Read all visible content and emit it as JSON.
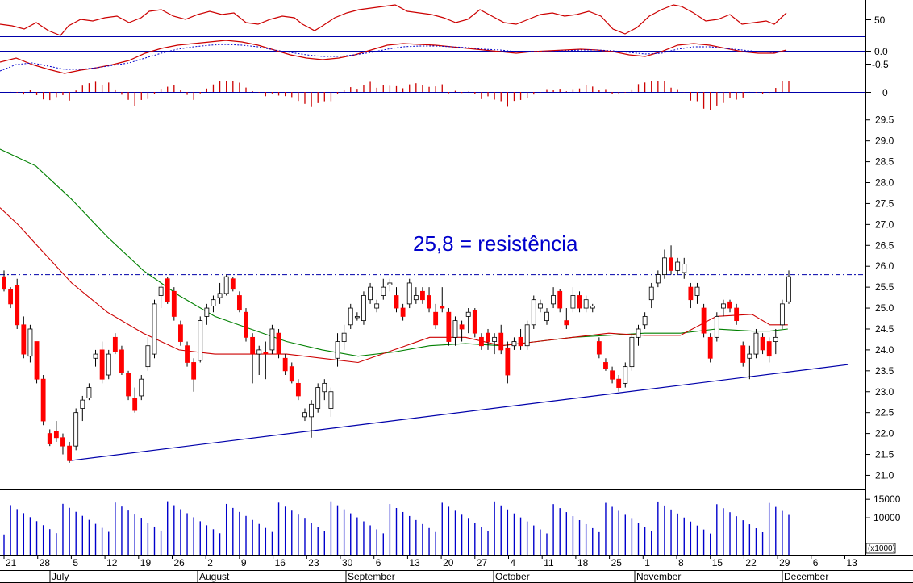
{
  "chart_data": {
    "type": "candlestick",
    "annotation": "25,8 = resistência",
    "resistance_level": 25.8,
    "colors": {
      "up_candle": "#ffffff",
      "down_candle": "#ff0000",
      "candle_outline": "#000000",
      "ma_fast": "#cc0000",
      "ma_slow": "#008000",
      "trendline": "#0000aa",
      "resistance_line": "#0000aa",
      "volume": "#0000cc",
      "indicator_line": "#cc0000",
      "signal_line": "#0000cc",
      "histogram": "#cc0000"
    },
    "price_axis": {
      "ylim": [
        20.7,
        29.9
      ],
      "ticks": [
        "29.5",
        "29.0",
        "28.5",
        "28.0",
        "27.5",
        "27.0",
        "26.5",
        "26.0",
        "25.5",
        "25.0",
        "24.5",
        "24.0",
        "23.5",
        "23.0",
        "22.5",
        "22.0",
        "21.5",
        "21.0"
      ]
    },
    "volume_axis": {
      "ylim": [
        0,
        17000
      ],
      "ticks": [
        "15000",
        "10000"
      ],
      "unit_label": "x1000"
    },
    "oscillator_axis": {
      "ticks": [
        "50"
      ]
    },
    "macd_axis": {
      "ticks": [
        "0.0",
        "-0.5"
      ]
    },
    "histogram_axis": {
      "ticks": [
        "0"
      ]
    },
    "x_day_labels": [
      "21",
      "28",
      "5",
      "12",
      "19",
      "26",
      "2",
      "9",
      "16",
      "23",
      "30",
      "6",
      "13",
      "20",
      "27",
      "4",
      "11",
      "18",
      "25",
      "1",
      "8",
      "15",
      "22",
      "29",
      "6",
      "13"
    ],
    "x_month_labels": [
      "July",
      "August",
      "September",
      "October",
      "November",
      "December"
    ],
    "trendline": {
      "start": 21.35,
      "end": 23.65
    },
    "ohlc": [
      [
        25.75,
        25.9,
        25.4,
        25.45
      ],
      [
        25.45,
        25.5,
        25.0,
        25.1
      ],
      [
        25.55,
        25.7,
        24.5,
        24.6
      ],
      [
        24.6,
        24.8,
        23.8,
        23.9
      ],
      [
        23.85,
        24.6,
        23.7,
        24.5
      ],
      [
        24.2,
        24.2,
        23.2,
        23.3
      ],
      [
        23.3,
        23.4,
        22.2,
        22.3
      ],
      [
        22.0,
        22.1,
        21.7,
        21.75
      ],
      [
        22.05,
        22.3,
        21.8,
        21.9
      ],
      [
        21.9,
        22.0,
        21.5,
        21.7
      ],
      [
        21.7,
        21.8,
        21.3,
        21.35
      ],
      [
        21.7,
        22.6,
        21.6,
        22.5
      ],
      [
        22.6,
        22.9,
        22.3,
        22.8
      ],
      [
        22.85,
        23.2,
        22.8,
        23.1
      ],
      [
        23.8,
        24.0,
        23.6,
        23.9
      ],
      [
        24.0,
        24.2,
        23.2,
        23.3
      ],
      [
        23.4,
        24.0,
        23.3,
        23.9
      ],
      [
        24.3,
        24.4,
        23.9,
        23.95
      ],
      [
        24.0,
        24.1,
        23.4,
        23.45
      ],
      [
        23.45,
        23.5,
        22.8,
        22.9
      ],
      [
        22.85,
        23.1,
        22.5,
        22.55
      ],
      [
        22.9,
        23.4,
        22.8,
        23.3
      ],
      [
        23.6,
        24.3,
        23.5,
        24.1
      ],
      [
        23.9,
        25.2,
        23.8,
        25.1
      ],
      [
        25.3,
        25.6,
        25.0,
        25.5
      ],
      [
        25.7,
        25.75,
        25.1,
        25.15
      ],
      [
        25.4,
        25.5,
        24.7,
        24.8
      ],
      [
        24.6,
        24.7,
        24.1,
        24.2
      ],
      [
        24.1,
        24.2,
        23.6,
        23.7
      ],
      [
        23.7,
        23.8,
        23.0,
        23.3
      ],
      [
        23.75,
        24.8,
        23.7,
        24.7
      ],
      [
        24.8,
        25.1,
        24.6,
        25.0
      ],
      [
        25.05,
        25.3,
        24.9,
        25.2
      ],
      [
        25.25,
        25.6,
        25.1,
        25.35
      ],
      [
        25.35,
        25.8,
        25.3,
        25.75
      ],
      [
        25.7,
        25.75,
        25.4,
        25.45
      ],
      [
        25.3,
        25.4,
        24.9,
        24.95
      ],
      [
        24.9,
        25.0,
        24.2,
        24.3
      ],
      [
        24.3,
        24.4,
        23.2,
        23.9
      ],
      [
        23.9,
        24.1,
        23.4,
        24.0
      ],
      [
        23.95,
        24.2,
        23.3,
        23.9
      ],
      [
        24.0,
        24.6,
        23.9,
        24.5
      ],
      [
        24.4,
        24.5,
        23.8,
        23.9
      ],
      [
        23.8,
        23.9,
        23.4,
        23.5
      ],
      [
        23.6,
        23.7,
        23.2,
        23.25
      ],
      [
        23.2,
        23.3,
        22.8,
        22.9
      ],
      [
        22.4,
        22.6,
        22.3,
        22.5
      ],
      [
        22.4,
        22.8,
        21.9,
        22.7
      ],
      [
        22.6,
        23.2,
        22.5,
        23.1
      ],
      [
        23.0,
        23.3,
        22.8,
        23.2
      ],
      [
        22.6,
        23.1,
        22.4,
        23.0
      ],
      [
        23.8,
        24.4,
        23.6,
        24.2
      ],
      [
        24.2,
        24.6,
        24.0,
        24.4
      ],
      [
        24.6,
        25.1,
        24.5,
        25.0
      ],
      [
        24.8,
        24.9,
        24.7,
        24.8
      ],
      [
        24.7,
        25.4,
        24.6,
        25.3
      ],
      [
        25.2,
        25.6,
        25.1,
        25.5
      ],
      [
        25.0,
        25.2,
        24.9,
        25.1
      ],
      [
        25.3,
        25.7,
        25.2,
        25.5
      ],
      [
        25.55,
        25.7,
        25.4,
        25.6
      ],
      [
        25.3,
        25.5,
        24.9,
        25.0
      ],
      [
        25.0,
        25.1,
        24.7,
        24.8
      ],
      [
        25.1,
        25.7,
        25.0,
        25.6
      ],
      [
        25.2,
        25.5,
        25.1,
        25.3
      ],
      [
        25.4,
        25.5,
        25.1,
        25.2
      ],
      [
        25.3,
        25.5,
        24.9,
        25.0
      ],
      [
        24.9,
        25.1,
        24.5,
        24.6
      ],
      [
        25.05,
        25.5,
        24.9,
        25.0
      ],
      [
        24.9,
        25.0,
        24.1,
        24.2
      ],
      [
        24.3,
        24.8,
        24.1,
        24.7
      ],
      [
        24.6,
        24.7,
        24.2,
        24.5
      ],
      [
        24.8,
        25.0,
        24.4,
        24.9
      ],
      [
        24.95,
        25.0,
        24.3,
        24.4
      ],
      [
        24.3,
        24.4,
        24.0,
        24.1
      ],
      [
        24.4,
        24.5,
        24.0,
        24.2
      ],
      [
        24.2,
        24.4,
        23.9,
        24.3
      ],
      [
        24.4,
        24.6,
        23.9,
        24.0
      ],
      [
        24.05,
        24.2,
        23.2,
        23.4
      ],
      [
        24.1,
        24.3,
        24.0,
        24.2
      ],
      [
        24.3,
        24.5,
        24.0,
        24.1
      ],
      [
        24.1,
        24.7,
        24.0,
        24.6
      ],
      [
        24.6,
        25.3,
        24.5,
        25.2
      ],
      [
        25.0,
        25.2,
        24.9,
        25.1
      ],
      [
        24.7,
        25.0,
        24.6,
        24.9
      ],
      [
        25.1,
        25.5,
        25.0,
        25.3
      ],
      [
        25.4,
        25.45,
        24.9,
        25.0
      ],
      [
        24.7,
        25.0,
        24.5,
        24.6
      ],
      [
        25.0,
        25.5,
        24.9,
        25.3
      ],
      [
        25.3,
        25.4,
        24.9,
        25.0
      ],
      [
        25.0,
        25.3,
        24.9,
        25.2
      ],
      [
        25.0,
        25.1,
        24.9,
        25.05
      ],
      [
        24.2,
        24.3,
        23.8,
        23.9
      ],
      [
        23.7,
        23.8,
        23.5,
        23.55
      ],
      [
        23.5,
        23.6,
        23.2,
        23.3
      ],
      [
        23.3,
        23.4,
        23.0,
        23.1
      ],
      [
        23.2,
        23.7,
        23.1,
        23.6
      ],
      [
        23.6,
        24.4,
        23.5,
        24.3
      ],
      [
        24.3,
        24.6,
        24.1,
        24.5
      ],
      [
        24.6,
        24.9,
        24.5,
        24.8
      ],
      [
        25.2,
        25.6,
        25.0,
        25.5
      ],
      [
        25.6,
        25.9,
        25.5,
        25.8
      ],
      [
        25.8,
        26.4,
        25.7,
        26.2
      ],
      [
        26.2,
        26.5,
        25.8,
        25.9
      ],
      [
        25.9,
        26.2,
        25.8,
        26.1
      ],
      [
        25.85,
        26.2,
        25.7,
        26.05
      ],
      [
        25.5,
        25.6,
        25.0,
        25.2
      ],
      [
        25.3,
        25.6,
        25.1,
        25.5
      ],
      [
        25.0,
        25.1,
        24.3,
        24.4
      ],
      [
        24.3,
        24.4,
        23.7,
        23.8
      ],
      [
        24.3,
        24.9,
        24.2,
        24.8
      ],
      [
        25.0,
        25.2,
        24.8,
        25.1
      ],
      [
        25.15,
        25.2,
        24.9,
        25.0
      ],
      [
        25.0,
        25.1,
        24.6,
        24.7
      ],
      [
        24.1,
        24.2,
        23.6,
        23.7
      ],
      [
        23.8,
        24.1,
        23.3,
        23.9
      ],
      [
        23.9,
        24.5,
        23.8,
        24.4
      ],
      [
        24.3,
        24.4,
        23.9,
        24.0
      ],
      [
        24.2,
        24.3,
        23.7,
        23.85
      ],
      [
        24.2,
        24.5,
        23.9,
        24.3
      ],
      [
        24.6,
        25.2,
        24.5,
        25.1
      ],
      [
        25.15,
        25.9,
        25.1,
        25.75
      ]
    ],
    "ma_fast": [
      [
        0,
        27.4
      ],
      [
        0.02,
        27.0
      ],
      [
        0.05,
        26.3
      ],
      [
        0.08,
        25.6
      ],
      [
        0.12,
        24.9
      ],
      [
        0.16,
        24.4
      ],
      [
        0.2,
        24.0
      ],
      [
        0.24,
        23.9
      ],
      [
        0.28,
        23.9
      ],
      [
        0.32,
        23.9
      ],
      [
        0.36,
        23.8
      ],
      [
        0.4,
        23.7
      ],
      [
        0.44,
        24.0
      ],
      [
        0.48,
        24.3
      ],
      [
        0.52,
        24.3
      ],
      [
        0.56,
        24.1
      ],
      [
        0.6,
        24.2
      ],
      [
        0.64,
        24.3
      ],
      [
        0.68,
        24.4
      ],
      [
        0.72,
        24.35
      ],
      [
        0.76,
        24.35
      ],
      [
        0.8,
        24.8
      ],
      [
        0.84,
        24.85
      ],
      [
        0.86,
        24.6
      ],
      [
        0.88,
        24.6
      ]
    ],
    "ma_slow": [
      [
        0,
        28.8
      ],
      [
        0.04,
        28.4
      ],
      [
        0.08,
        27.6
      ],
      [
        0.12,
        26.7
      ],
      [
        0.16,
        25.9
      ],
      [
        0.2,
        25.3
      ],
      [
        0.24,
        24.8
      ],
      [
        0.28,
        24.5
      ],
      [
        0.32,
        24.2
      ],
      [
        0.36,
        24.0
      ],
      [
        0.4,
        23.85
      ],
      [
        0.44,
        23.95
      ],
      [
        0.48,
        24.1
      ],
      [
        0.52,
        24.15
      ],
      [
        0.56,
        24.1
      ],
      [
        0.6,
        24.2
      ],
      [
        0.64,
        24.3
      ],
      [
        0.68,
        24.35
      ],
      [
        0.72,
        24.4
      ],
      [
        0.76,
        24.4
      ],
      [
        0.8,
        24.5
      ],
      [
        0.84,
        24.45
      ],
      [
        0.86,
        24.45
      ],
      [
        0.88,
        24.5
      ]
    ]
  }
}
